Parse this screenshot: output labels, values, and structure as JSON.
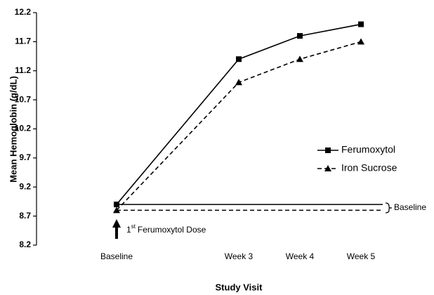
{
  "chart_data": {
    "type": "line",
    "ylabel": "Mean Hemoglobin (g/dL)",
    "xlabel": "Study Visit",
    "categories": [
      "Baseline",
      "Week 3",
      "Week 4",
      "Week 5"
    ],
    "series": [
      {
        "name": "Ferumoxytol",
        "color": "#000000",
        "marker": "square",
        "dashed": false,
        "values": [
          8.9,
          11.4,
          11.8,
          12.0
        ]
      },
      {
        "name": "Iron Sucrose",
        "color": "#000000",
        "marker": "triangle",
        "dashed": true,
        "values": [
          8.8,
          11.0,
          11.4,
          11.7
        ]
      }
    ],
    "ylim": [
      8.2,
      12.2
    ],
    "yticks": [
      8.2,
      8.7,
      9.2,
      9.7,
      10.2,
      10.7,
      11.2,
      11.7,
      12.2
    ],
    "legend": "right",
    "reference_lines": [
      {
        "value": 8.9,
        "dashed": false
      },
      {
        "value": 8.8,
        "dashed": true
      }
    ],
    "reference_label": "Baseline",
    "annotation": {
      "number": "1",
      "suffix": "st",
      "text": "Ferumoxytol Dose"
    }
  }
}
